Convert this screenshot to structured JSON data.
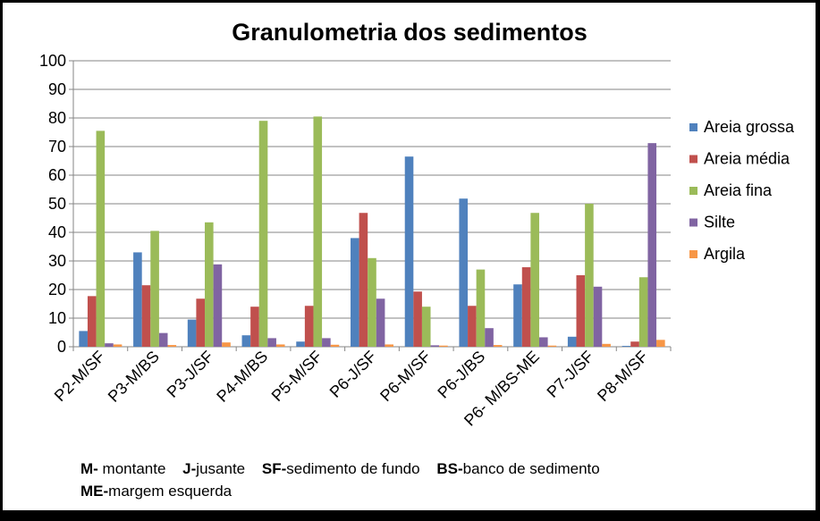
{
  "chart_data": {
    "type": "bar",
    "title": "Granulometria dos sedimentos",
    "xlabel": "",
    "ylabel": "",
    "ylim": [
      0,
      100
    ],
    "yticks": [
      0,
      10,
      20,
      30,
      40,
      50,
      60,
      70,
      80,
      90,
      100
    ],
    "grid": true,
    "legend_position": "right",
    "categories": [
      "P2-M/SF",
      "P3-M/BS",
      "P3-J/SF",
      "P4-M/BS",
      "P5-M/SF",
      "P6-J/SF",
      "P6-M/SF",
      "P6-J/BS",
      "P6- M/BS-ME",
      "P7-J/SF",
      "P8-M/SF"
    ],
    "series": [
      {
        "name": "Areia grossa",
        "color": "#4F81BD",
        "values": [
          5.5,
          33,
          9.5,
          4,
          1.8,
          38,
          66.5,
          51.8,
          21.8,
          3.5,
          0.3
        ]
      },
      {
        "name": "Areia média",
        "color": "#C0504D",
        "values": [
          17.7,
          21.5,
          16.8,
          14,
          14.3,
          46.8,
          19.3,
          14.3,
          27.8,
          25,
          1.8
        ]
      },
      {
        "name": "Areia fina",
        "color": "#9BBB59",
        "values": [
          75.5,
          40.5,
          43.5,
          79,
          80.5,
          31,
          14,
          27,
          46.8,
          50,
          24.3
        ]
      },
      {
        "name": "Silte",
        "color": "#8064A2",
        "values": [
          1.2,
          4.8,
          28.8,
          3,
          3,
          16.8,
          0.5,
          6.5,
          3.3,
          21,
          71.2
        ]
      },
      {
        "name": "Argila",
        "color": "#F79646",
        "values": [
          0.8,
          0.6,
          1.5,
          0.8,
          0.7,
          0.8,
          0.4,
          0.6,
          0.4,
          1,
          2.4
        ]
      }
    ]
  },
  "notes": [
    {
      "key": "M-",
      "text": " montante"
    },
    {
      "key": "J-",
      "text": "jusante"
    },
    {
      "key": "SF-",
      "text": "sedimento de fundo"
    },
    {
      "key": "BS-",
      "text": "banco de sedimento"
    },
    {
      "key": "ME-",
      "text": "margem esquerda"
    }
  ]
}
